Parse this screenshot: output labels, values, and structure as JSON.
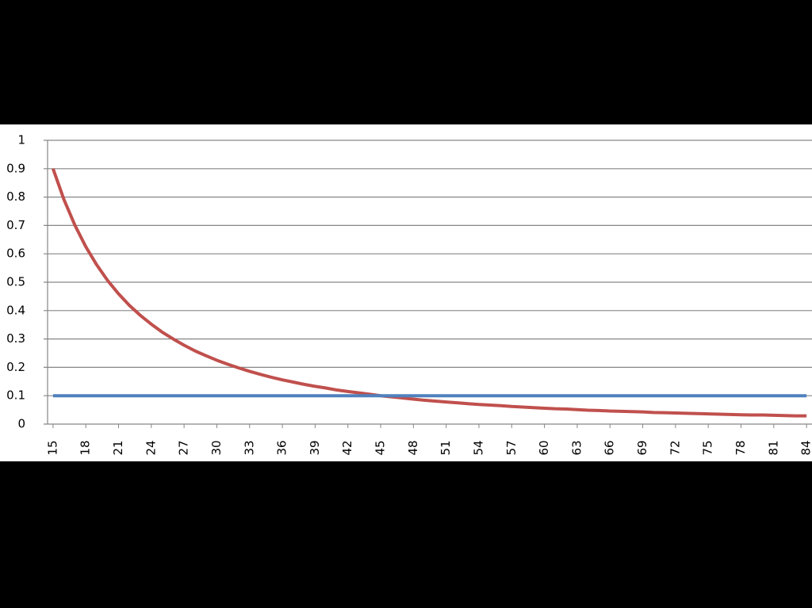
{
  "chart_data": {
    "type": "line",
    "categories": [
      "15",
      null,
      null,
      "18",
      null,
      null,
      "21",
      null,
      null,
      "24",
      null,
      null,
      "27",
      null,
      null,
      "30",
      null,
      null,
      "33",
      null,
      null,
      "36",
      null,
      null,
      "39",
      null,
      null,
      "42",
      null,
      null,
      "45",
      null,
      null,
      "48",
      null,
      null,
      "51",
      null,
      null,
      "54",
      null,
      null,
      "57",
      null,
      null,
      "60",
      null,
      null,
      "63",
      null,
      null,
      "66",
      null,
      null,
      "69",
      null,
      null,
      "72",
      null,
      null,
      "75",
      null,
      null,
      "78",
      null,
      null,
      "81",
      null,
      null,
      "84"
    ],
    "series": [
      {
        "color": "#c0504d",
        "values": [
          0.9,
          0.791,
          0.701,
          0.625,
          0.561,
          0.506,
          0.459,
          0.418,
          0.383,
          0.352,
          0.324,
          0.3,
          0.278,
          0.258,
          0.241,
          0.225,
          0.211,
          0.198,
          0.186,
          0.175,
          0.165,
          0.156,
          0.148,
          0.14,
          0.133,
          0.127,
          0.12,
          0.115,
          0.11,
          0.105,
          0.1,
          0.096,
          0.092,
          0.088,
          0.084,
          0.081,
          0.078,
          0.075,
          0.072,
          0.069,
          0.067,
          0.065,
          0.062,
          0.06,
          0.058,
          0.056,
          0.054,
          0.053,
          0.051,
          0.049,
          0.048,
          0.046,
          0.045,
          0.044,
          0.043,
          0.041,
          0.04,
          0.039,
          0.038,
          0.037,
          0.036,
          0.035,
          0.034,
          0.033,
          0.032,
          0.032,
          0.031,
          0.03,
          0.029,
          0.029
        ]
      },
      {
        "color": "#4f81bd",
        "values": [
          0.1,
          0.1,
          0.1,
          0.1,
          0.1,
          0.1,
          0.1,
          0.1,
          0.1,
          0.1,
          0.1,
          0.1,
          0.1,
          0.1,
          0.1,
          0.1,
          0.1,
          0.1,
          0.1,
          0.1,
          0.1,
          0.1,
          0.1,
          0.1,
          0.1,
          0.1,
          0.1,
          0.1,
          0.1,
          0.1,
          0.1,
          0.1,
          0.1,
          0.1,
          0.1,
          0.1,
          0.1,
          0.1,
          0.1,
          0.1,
          0.1,
          0.1,
          0.1,
          0.1,
          0.1,
          0.1,
          0.1,
          0.1,
          0.1,
          0.1,
          0.1,
          0.1,
          0.1,
          0.1,
          0.1,
          0.1,
          0.1,
          0.1,
          0.1,
          0.1,
          0.1,
          0.1,
          0.1,
          0.1,
          0.1,
          0.1,
          0.1,
          0.1,
          0.1,
          0.1
        ]
      }
    ],
    "ylim": [
      0,
      1
    ],
    "yticks": [
      0,
      0.1,
      0.2,
      0.3,
      0.4,
      0.5,
      0.6,
      0.7,
      0.8,
      0.9,
      1
    ],
    "grid": true
  }
}
